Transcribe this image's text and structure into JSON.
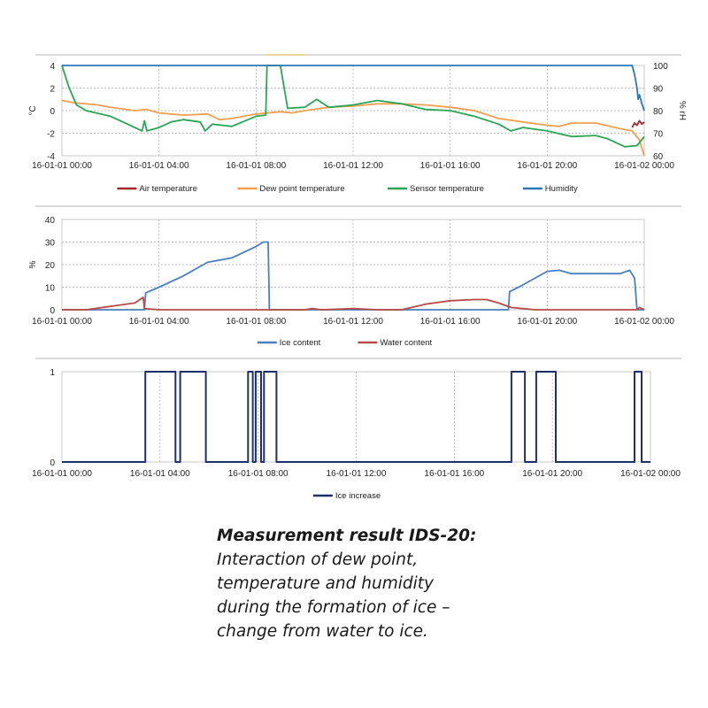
{
  "chart_data": [
    {
      "type": "line",
      "title": "",
      "ylabel": "°C",
      "ylabel_right": "% rH",
      "ylim": [
        -4,
        4
      ],
      "yticks": [
        "4",
        "2",
        "0",
        "-2",
        "-4"
      ],
      "ylim_right": [
        60,
        100
      ],
      "yticks_right": [
        "100",
        "90",
        "80",
        "70",
        "60"
      ],
      "xlim_hours": [
        0,
        24
      ],
      "xticks": [
        "16-01-01 00:00",
        "16-01-01 04:00",
        "16-01-01 08:00",
        "16-01-01 12:00",
        "16-01-01 16:00",
        "16-01-01 20:00",
        "16-01-02 00:00"
      ],
      "grid": true,
      "legend": "bottom",
      "series": [
        {
          "name": "Air temperature",
          "color": "#a0282a",
          "axis": "left",
          "points": [
            [
              23.5,
              -1.5
            ],
            [
              23.6,
              -1.1
            ],
            [
              23.7,
              -1.3
            ],
            [
              23.8,
              -0.9
            ],
            [
              23.9,
              -1.2
            ],
            [
              24,
              -1.0
            ]
          ]
        },
        {
          "name": "Dew point temperature",
          "color": "#f0a050",
          "axis": "left",
          "points": [
            [
              0,
              0.9
            ],
            [
              0.5,
              0.7
            ],
            [
              1,
              0.6
            ],
            [
              1.5,
              0.5
            ],
            [
              2,
              0.3
            ],
            [
              3,
              0.0
            ],
            [
              3.5,
              0.1
            ],
            [
              4,
              -0.2
            ],
            [
              5,
              -0.4
            ],
            [
              6,
              -0.3
            ],
            [
              6.5,
              -0.8
            ],
            [
              7,
              -0.7
            ],
            [
              8,
              -0.3
            ],
            [
              9,
              -0.1
            ],
            [
              9.5,
              -0.2
            ],
            [
              10,
              0.0
            ],
            [
              11,
              0.3
            ],
            [
              12,
              0.4
            ],
            [
              13,
              0.6
            ],
            [
              14,
              0.6
            ],
            [
              15,
              0.5
            ],
            [
              16,
              0.3
            ],
            [
              17,
              0.0
            ],
            [
              18,
              -0.7
            ],
            [
              19,
              -1.0
            ],
            [
              20,
              -1.3
            ],
            [
              20.5,
              -1.4
            ],
            [
              21,
              -1.1
            ],
            [
              22,
              -1.1
            ],
            [
              23,
              -1.6
            ],
            [
              23.5,
              -1.8
            ],
            [
              23.8,
              -2.6
            ],
            [
              24,
              -4.0
            ]
          ]
        },
        {
          "name": "Sensor temperature",
          "color": "#2aa556",
          "axis": "left",
          "points": [
            [
              0,
              4
            ],
            [
              0.3,
              2
            ],
            [
              0.6,
              0.5
            ],
            [
              1,
              0
            ],
            [
              2,
              -0.5
            ],
            [
              3,
              -1.5
            ],
            [
              3.3,
              -1.8
            ],
            [
              3.4,
              -0.9
            ],
            [
              3.5,
              -1.8
            ],
            [
              4,
              -1.5
            ],
            [
              4.5,
              -1.0
            ],
            [
              5,
              -0.8
            ],
            [
              5.7,
              -1.0
            ],
            [
              5.9,
              -1.8
            ],
            [
              6.2,
              -1.2
            ],
            [
              7,
              -1.4
            ],
            [
              8,
              -0.5
            ],
            [
              8.4,
              -0.4
            ],
            [
              8.45,
              4
            ],
            [
              9,
              4
            ],
            [
              9.3,
              0.2
            ],
            [
              10,
              0.3
            ],
            [
              10.5,
              1.0
            ],
            [
              11,
              0.3
            ],
            [
              12,
              0.5
            ],
            [
              13,
              0.9
            ],
            [
              14,
              0.6
            ],
            [
              15,
              0.1
            ],
            [
              16,
              0.0
            ],
            [
              17,
              -0.5
            ],
            [
              18,
              -1.2
            ],
            [
              18.5,
              -1.8
            ],
            [
              19,
              -1.5
            ],
            [
              20,
              -1.8
            ],
            [
              21,
              -2.3
            ],
            [
              22,
              -2.2
            ],
            [
              22.5,
              -2.5
            ],
            [
              23.2,
              -3.2
            ],
            [
              23.7,
              -3.1
            ],
            [
              24,
              -2.3
            ]
          ]
        },
        {
          "name": "Humidity",
          "color": "#2a78b8",
          "axis": "right",
          "points": [
            [
              0,
              100
            ],
            [
              23.5,
              100
            ],
            [
              23.6,
              96
            ],
            [
              23.7,
              90
            ],
            [
              23.75,
              85
            ],
            [
              23.8,
              87
            ],
            [
              23.9,
              83
            ],
            [
              24,
              80
            ]
          ]
        }
      ]
    },
    {
      "type": "line",
      "ylabel": "%",
      "ylim": [
        0,
        40
      ],
      "yticks": [
        "40",
        "30",
        "20",
        "10",
        "0"
      ],
      "xlim_hours": [
        0,
        24
      ],
      "xticks": [
        "16-01-01 00:00",
        "16-01-01 04:00",
        "16-01-01 08:00",
        "16-01-01 12:00",
        "16-01-01 16:00",
        "16-01-01 20:00",
        "16-01-02 00:00"
      ],
      "grid": true,
      "legend": "bottom",
      "series": [
        {
          "name": "Ice content",
          "color": "#4a7fbf",
          "points": [
            [
              0,
              0
            ],
            [
              3.4,
              0
            ],
            [
              3.45,
              7.5
            ],
            [
              4,
              10
            ],
            [
              5,
              15
            ],
            [
              6,
              21
            ],
            [
              7,
              23
            ],
            [
              8,
              28
            ],
            [
              8.3,
              30
            ],
            [
              8.5,
              30
            ],
            [
              8.55,
              0
            ],
            [
              18.4,
              0
            ],
            [
              18.45,
              8
            ],
            [
              19,
              11
            ],
            [
              20,
              17
            ],
            [
              20.5,
              17.5
            ],
            [
              21,
              16
            ],
            [
              22,
              16
            ],
            [
              23,
              16
            ],
            [
              23.4,
              17.5
            ],
            [
              23.6,
              14
            ],
            [
              23.7,
              0
            ],
            [
              24,
              0
            ]
          ]
        },
        {
          "name": "Water content",
          "color": "#b84a48",
          "points": [
            [
              0,
              0
            ],
            [
              1,
              0
            ],
            [
              2,
              1.5
            ],
            [
              3,
              3
            ],
            [
              3.35,
              5.5
            ],
            [
              3.4,
              0.5
            ],
            [
              4,
              0
            ],
            [
              10,
              0
            ],
            [
              10.3,
              0.5
            ],
            [
              10.7,
              0
            ],
            [
              12,
              0.5
            ],
            [
              13,
              0
            ],
            [
              14,
              0
            ],
            [
              15,
              2.5
            ],
            [
              16,
              4
            ],
            [
              17,
              4.5
            ],
            [
              17.5,
              4.5
            ],
            [
              18,
              3
            ],
            [
              18.5,
              1
            ],
            [
              19,
              0.5
            ],
            [
              19.5,
              0
            ],
            [
              23.7,
              0
            ],
            [
              23.8,
              1
            ],
            [
              24,
              0
            ]
          ]
        }
      ]
    },
    {
      "type": "line",
      "ylim": [
        0,
        1
      ],
      "yticks": [
        "1",
        "0"
      ],
      "xlim_hours": [
        0,
        24
      ],
      "xticks": [
        "16-01-01 00:00",
        "16-01-01 04:00",
        "16-01-01 08:00",
        "16-01-01 12:00",
        "16-01-01 16:00",
        "16-01-01 20:00",
        "16-01-02 00:00"
      ],
      "grid": true,
      "legend": "bottom",
      "series": [
        {
          "name": "Ice increase",
          "color": "#1f2f6a",
          "step": true,
          "intervals_hours": [
            [
              3.4,
              4.63
            ],
            [
              4.82,
              5.87
            ],
            [
              7.59,
              7.78
            ],
            [
              7.9,
              8.12
            ],
            [
              8.24,
              8.75
            ],
            [
              18.33,
              18.88
            ],
            [
              19.34,
              20.14
            ],
            [
              23.35,
              23.64
            ]
          ]
        }
      ]
    }
  ],
  "caption": {
    "title": "Measurement result IDS-20:",
    "lines": [
      "Interaction of dew point,",
      "temperature and humidity",
      "during the formation of ice –",
      "change from water to ice."
    ]
  }
}
